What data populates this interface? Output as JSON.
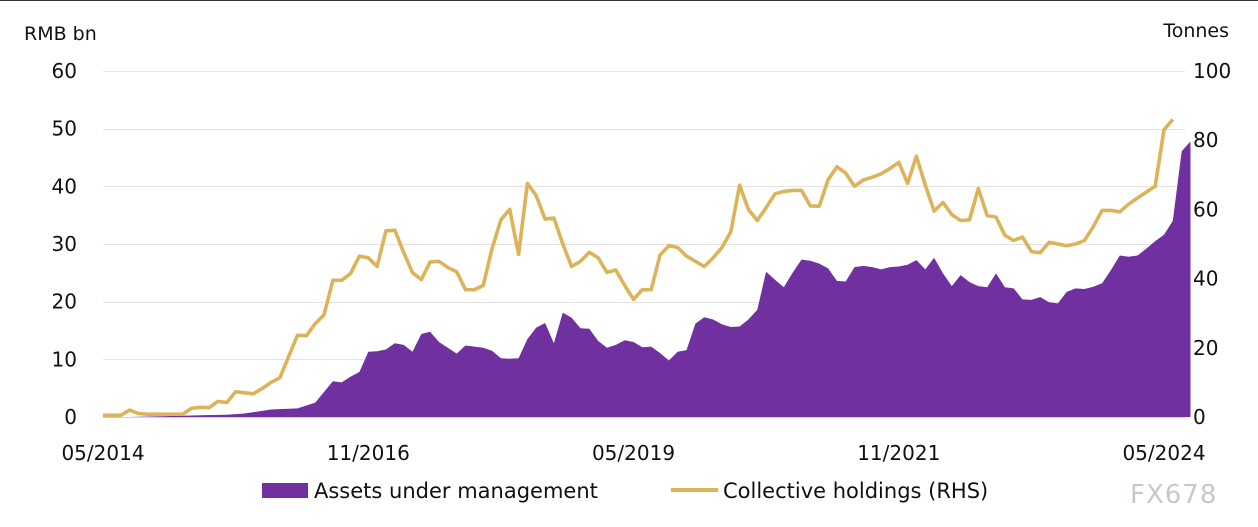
{
  "colors": {
    "area": "#7030a0",
    "line": "#ddb35a",
    "grid": "#e3e3e3"
  },
  "watermark": "FX678",
  "chart_data": {
    "type": "area",
    "title": "",
    "left_axis": {
      "label": "RMB bn",
      "ticks": [
        0,
        10,
        20,
        30,
        40,
        50,
        60
      ],
      "range": [
        0,
        60
      ]
    },
    "right_axis": {
      "label": "Tonnes",
      "ticks": [
        0,
        20,
        40,
        60,
        80,
        100
      ],
      "range": [
        0,
        100
      ]
    },
    "x_ticks": [
      {
        "label": "05/2014",
        "index": 0
      },
      {
        "label": "11/2016",
        "index": 30
      },
      {
        "label": "05/2019",
        "index": 60
      },
      {
        "label": "11/2021",
        "index": 90
      },
      {
        "label": "05/2024",
        "index": 120
      }
    ],
    "x_range": [
      0,
      120
    ],
    "grid": true,
    "legend_position": "bottom",
    "legend": [
      {
        "name": "Assets under management",
        "type": "area"
      },
      {
        "name": "Collective holdings (RHS)",
        "type": "line"
      }
    ],
    "series": [
      {
        "name": "Assets under management",
        "axis": "left",
        "points": [
          [
            0,
            0
          ],
          [
            3,
            0
          ],
          [
            6,
            0.1
          ],
          [
            9,
            0.2
          ],
          [
            11,
            0.3
          ],
          [
            14,
            0.4
          ],
          [
            16,
            0.6
          ],
          [
            19,
            1.3
          ],
          [
            22,
            1.5
          ],
          [
            24,
            2.5
          ],
          [
            26,
            6.2
          ],
          [
            27,
            6.0
          ],
          [
            28,
            7.0
          ],
          [
            29,
            7.8
          ],
          [
            30,
            11.3
          ],
          [
            31,
            11.4
          ],
          [
            32,
            11.7
          ],
          [
            33,
            12.8
          ],
          [
            34,
            12.5
          ],
          [
            35,
            11.3
          ],
          [
            36,
            14.4
          ],
          [
            37,
            14.8
          ],
          [
            38,
            13.0
          ],
          [
            39,
            12.0
          ],
          [
            40,
            11.0
          ],
          [
            41,
            12.4
          ],
          [
            42,
            12.2
          ],
          [
            43,
            12.0
          ],
          [
            44,
            11.5
          ],
          [
            45,
            10.2
          ],
          [
            46,
            10.1
          ],
          [
            47,
            10.2
          ],
          [
            48,
            13.5
          ],
          [
            49,
            15.5
          ],
          [
            50,
            16.3
          ],
          [
            51,
            12.8
          ],
          [
            52,
            18.1
          ],
          [
            53,
            17.2
          ],
          [
            54,
            15.4
          ],
          [
            55,
            15.3
          ],
          [
            56,
            13.2
          ],
          [
            57,
            12.0
          ],
          [
            58,
            12.5
          ],
          [
            59,
            13.3
          ],
          [
            60,
            13.0
          ],
          [
            61,
            12.1
          ],
          [
            62,
            12.2
          ],
          [
            63,
            11.1
          ],
          [
            64,
            9.8
          ],
          [
            65,
            11.3
          ],
          [
            66,
            11.6
          ],
          [
            67,
            16.2
          ],
          [
            68,
            17.3
          ],
          [
            69,
            16.9
          ],
          [
            70,
            16.1
          ],
          [
            71,
            15.6
          ],
          [
            72,
            15.7
          ],
          [
            73,
            16.9
          ],
          [
            74,
            18.6
          ],
          [
            75,
            25.2
          ],
          [
            76,
            23.8
          ],
          [
            77,
            22.5
          ],
          [
            78,
            25.0
          ],
          [
            79,
            27.3
          ],
          [
            80,
            27.1
          ],
          [
            81,
            26.6
          ],
          [
            82,
            25.8
          ],
          [
            83,
            23.6
          ],
          [
            84,
            23.5
          ],
          [
            85,
            26.0
          ],
          [
            86,
            26.2
          ],
          [
            87,
            26.0
          ],
          [
            88,
            25.6
          ],
          [
            89,
            26.0
          ],
          [
            90,
            26.1
          ],
          [
            91,
            26.4
          ],
          [
            92,
            27.2
          ],
          [
            93,
            25.6
          ],
          [
            94,
            27.6
          ],
          [
            95,
            24.9
          ],
          [
            96,
            22.7
          ],
          [
            97,
            24.6
          ],
          [
            98,
            23.4
          ],
          [
            99,
            22.7
          ],
          [
            100,
            22.5
          ],
          [
            101,
            24.9
          ],
          [
            102,
            22.5
          ],
          [
            103,
            22.3
          ],
          [
            104,
            20.4
          ],
          [
            105,
            20.3
          ],
          [
            106,
            20.8
          ],
          [
            107,
            19.9
          ],
          [
            108,
            19.7
          ],
          [
            109,
            21.7
          ],
          [
            110,
            22.3
          ],
          [
            111,
            22.2
          ],
          [
            112,
            22.6
          ],
          [
            113,
            23.2
          ],
          [
            114,
            25.5
          ],
          [
            115,
            28.0
          ],
          [
            116,
            27.8
          ],
          [
            117,
            28.0
          ],
          [
            118,
            29.2
          ],
          [
            119,
            30.5
          ],
          [
            120,
            31.6
          ],
          [
            121,
            34.0
          ],
          [
            122,
            46.1
          ],
          [
            123,
            47.8
          ]
        ]
      },
      {
        "name": "Collective holdings (RHS)",
        "axis": "right",
        "points": [
          [
            0,
            0.5
          ],
          [
            1,
            0.5
          ],
          [
            2,
            0.5
          ],
          [
            3,
            2.0
          ],
          [
            4,
            1.0
          ],
          [
            5,
            0.8
          ],
          [
            6,
            0.8
          ],
          [
            7,
            0.8
          ],
          [
            8,
            0.8
          ],
          [
            9,
            0.8
          ],
          [
            10,
            2.5
          ],
          [
            11,
            2.8
          ],
          [
            12,
            2.7
          ],
          [
            13,
            4.5
          ],
          [
            14,
            4.2
          ],
          [
            15,
            7.3
          ],
          [
            16,
            7.0
          ],
          [
            17,
            6.7
          ],
          [
            18,
            8.2
          ],
          [
            19,
            10.0
          ],
          [
            20,
            11.3
          ],
          [
            21,
            17.5
          ],
          [
            22,
            23.6
          ],
          [
            23,
            23.5
          ],
          [
            24,
            27.0
          ],
          [
            25,
            29.5
          ],
          [
            26,
            39.5
          ],
          [
            27,
            39.5
          ],
          [
            28,
            41.5
          ],
          [
            29,
            46.5
          ],
          [
            30,
            46.0
          ],
          [
            31,
            43.5
          ],
          [
            32,
            53.8
          ],
          [
            33,
            54.0
          ],
          [
            34,
            47.6
          ],
          [
            35,
            41.7
          ],
          [
            36,
            39.7
          ],
          [
            37,
            44.8
          ],
          [
            38,
            45.0
          ],
          [
            39,
            43.2
          ],
          [
            40,
            42.0
          ],
          [
            41,
            36.8
          ],
          [
            42,
            36.8
          ],
          [
            43,
            38.0
          ],
          [
            44,
            48.6
          ],
          [
            45,
            57.0
          ],
          [
            46,
            60.0
          ],
          [
            47,
            47.0
          ],
          [
            48,
            67.5
          ],
          [
            49,
            64.0
          ],
          [
            50,
            57.2
          ],
          [
            51,
            57.5
          ],
          [
            52,
            50.0
          ],
          [
            53,
            43.5
          ],
          [
            54,
            45.0
          ],
          [
            55,
            47.6
          ],
          [
            56,
            46.0
          ],
          [
            57,
            41.8
          ],
          [
            58,
            42.5
          ],
          [
            59,
            38.0
          ],
          [
            60,
            34.0
          ],
          [
            61,
            36.8
          ],
          [
            62,
            36.8
          ],
          [
            63,
            46.8
          ],
          [
            64,
            49.5
          ],
          [
            65,
            49.0
          ],
          [
            66,
            46.5
          ],
          [
            67,
            45.0
          ],
          [
            68,
            43.5
          ],
          [
            69,
            46.0
          ],
          [
            70,
            49.0
          ],
          [
            71,
            53.5
          ],
          [
            72,
            67.0
          ],
          [
            73,
            60.0
          ],
          [
            74,
            56.8
          ],
          [
            75,
            60.5
          ],
          [
            76,
            64.5
          ],
          [
            77,
            65.2
          ],
          [
            78,
            65.5
          ],
          [
            79,
            65.5
          ],
          [
            80,
            61.0
          ],
          [
            81,
            60.9
          ],
          [
            82,
            68.5
          ],
          [
            83,
            72.3
          ],
          [
            84,
            70.5
          ],
          [
            85,
            66.7
          ],
          [
            86,
            68.5
          ],
          [
            87,
            69.3
          ],
          [
            88,
            70.3
          ],
          [
            89,
            71.8
          ],
          [
            90,
            73.6
          ],
          [
            91,
            67.5
          ],
          [
            92,
            75.4
          ],
          [
            93,
            67.0
          ],
          [
            94,
            59.5
          ],
          [
            95,
            62.0
          ],
          [
            96,
            58.5
          ],
          [
            97,
            56.8
          ],
          [
            98,
            57.0
          ],
          [
            99,
            66.0
          ],
          [
            100,
            58.2
          ],
          [
            101,
            57.8
          ],
          [
            102,
            52.5
          ],
          [
            103,
            51.0
          ],
          [
            104,
            52.0
          ],
          [
            105,
            47.8
          ],
          [
            106,
            47.5
          ],
          [
            107,
            50.5
          ],
          [
            108,
            50.0
          ],
          [
            109,
            49.5
          ],
          [
            110,
            50.0
          ],
          [
            111,
            51.0
          ],
          [
            112,
            55.0
          ],
          [
            113,
            59.7
          ],
          [
            114,
            59.7
          ],
          [
            115,
            59.3
          ],
          [
            116,
            61.5
          ],
          [
            117,
            63.3
          ],
          [
            118,
            65.0
          ],
          [
            119,
            66.7
          ],
          [
            120,
            83.0
          ],
          [
            121,
            86.0
          ]
        ]
      }
    ]
  }
}
